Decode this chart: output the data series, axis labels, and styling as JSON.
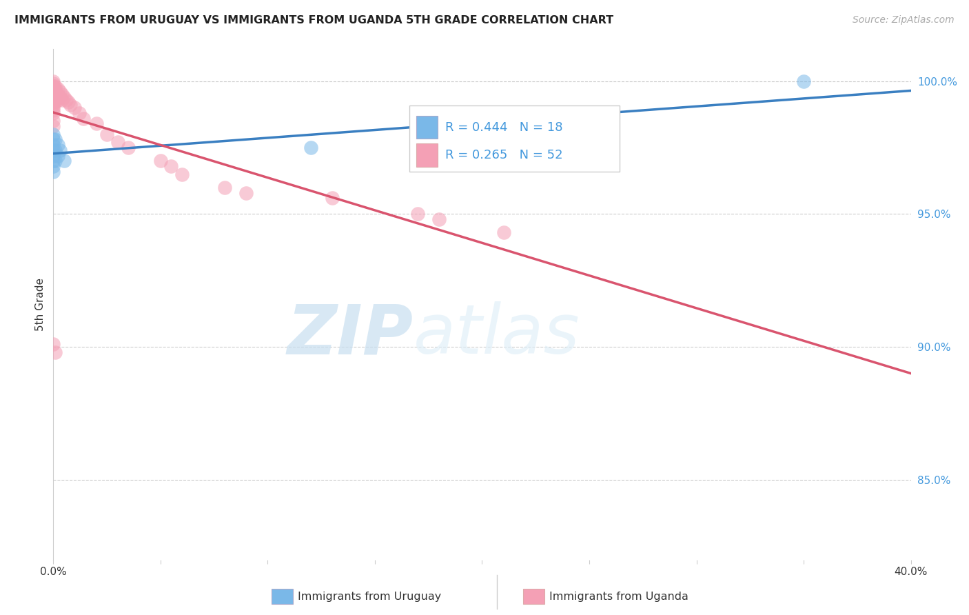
{
  "title": "IMMIGRANTS FROM URUGUAY VS IMMIGRANTS FROM UGANDA 5TH GRADE CORRELATION CHART",
  "source": "Source: ZipAtlas.com",
  "ylabel": "5th Grade",
  "xlim": [
    0.0,
    0.4
  ],
  "ylim": [
    0.82,
    1.012
  ],
  "yticks": [
    0.85,
    0.9,
    0.95,
    1.0
  ],
  "xticks": [
    0.0,
    0.05,
    0.1,
    0.15,
    0.2,
    0.25,
    0.3,
    0.35,
    0.4
  ],
  "legend_R_uruguay": "R = 0.444",
  "legend_N_uruguay": "N = 18",
  "legend_R_uganda": "R = 0.265",
  "legend_N_uganda": "N = 52",
  "uruguay_color": "#7ab8e8",
  "uganda_color": "#f4a0b5",
  "uruguay_line_color": "#3a7fc1",
  "uganda_line_color": "#d9546e",
  "background_color": "#ffffff",
  "watermark_zip": "ZIP",
  "watermark_atlas": "atlas",
  "uruguay_x": [
    0.0,
    0.0,
    0.0,
    0.0,
    0.0,
    0.0,
    0.0,
    0.0,
    0.001,
    0.001,
    0.001,
    0.002,
    0.002,
    0.003,
    0.005,
    0.12,
    0.22,
    0.35
  ],
  "uruguay_y": [
    0.98,
    0.978,
    0.976,
    0.974,
    0.972,
    0.97,
    0.968,
    0.966,
    0.978,
    0.974,
    0.97,
    0.976,
    0.972,
    0.974,
    0.97,
    0.975,
    0.978,
    1.0
  ],
  "uganda_x": [
    0.0,
    0.0,
    0.0,
    0.0,
    0.0,
    0.0,
    0.0,
    0.0,
    0.0,
    0.0,
    0.0,
    0.0,
    0.0,
    0.0,
    0.0,
    0.0,
    0.0,
    0.0,
    0.001,
    0.001,
    0.001,
    0.001,
    0.001,
    0.002,
    0.002,
    0.002,
    0.003,
    0.003,
    0.004,
    0.004,
    0.005,
    0.006,
    0.007,
    0.008,
    0.01,
    0.012,
    0.014,
    0.02,
    0.025,
    0.03,
    0.035,
    0.05,
    0.055,
    0.06,
    0.08,
    0.09,
    0.13,
    0.17,
    0.18,
    0.21,
    0.0,
    0.001
  ],
  "uganda_y": [
    1.0,
    0.999,
    0.998,
    0.998,
    0.997,
    0.997,
    0.996,
    0.996,
    0.995,
    0.994,
    0.993,
    0.992,
    0.991,
    0.99,
    0.989,
    0.988,
    0.985,
    0.983,
    0.998,
    0.997,
    0.996,
    0.994,
    0.992,
    0.997,
    0.995,
    0.993,
    0.996,
    0.994,
    0.995,
    0.993,
    0.994,
    0.993,
    0.992,
    0.991,
    0.99,
    0.988,
    0.986,
    0.984,
    0.98,
    0.977,
    0.975,
    0.97,
    0.968,
    0.965,
    0.96,
    0.958,
    0.956,
    0.95,
    0.948,
    0.943,
    0.901,
    0.898
  ]
}
